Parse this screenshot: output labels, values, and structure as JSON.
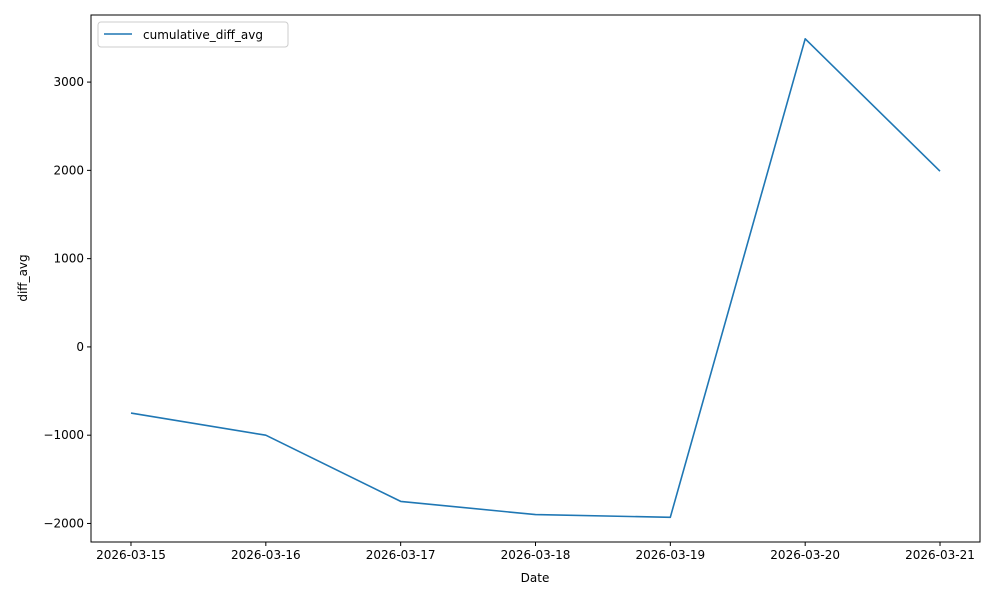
{
  "chart_data": {
    "type": "line",
    "title": "",
    "xlabel": "Date",
    "ylabel": "diff_avg",
    "x": [
      "2026-03-15",
      "2026-03-16",
      "2026-03-17",
      "2026-03-18",
      "2026-03-19",
      "2026-03-20",
      "2026-03-21"
    ],
    "series": [
      {
        "name": "cumulative_diff_avg",
        "color": "#1f77b4",
        "values": [
          -750,
          -1000,
          -1750,
          -1900,
          -1930,
          3490,
          1990
        ]
      }
    ],
    "xticks": [
      "2026-03-15",
      "2026-03-16",
      "2026-03-17",
      "2026-03-18",
      "2026-03-19",
      "2026-03-20",
      "2026-03-21"
    ],
    "yticks": [
      -2000,
      -1000,
      0,
      1000,
      2000,
      3000
    ],
    "ytick_labels": [
      "−2000",
      "−1000",
      "0",
      "1000",
      "2000",
      "3000"
    ],
    "ylim": [
      -2210,
      3760
    ],
    "xlim": [
      "2026-03-14T16:53",
      "2026-03-21T07:07"
    ],
    "grid": false,
    "legend": "top-left"
  }
}
